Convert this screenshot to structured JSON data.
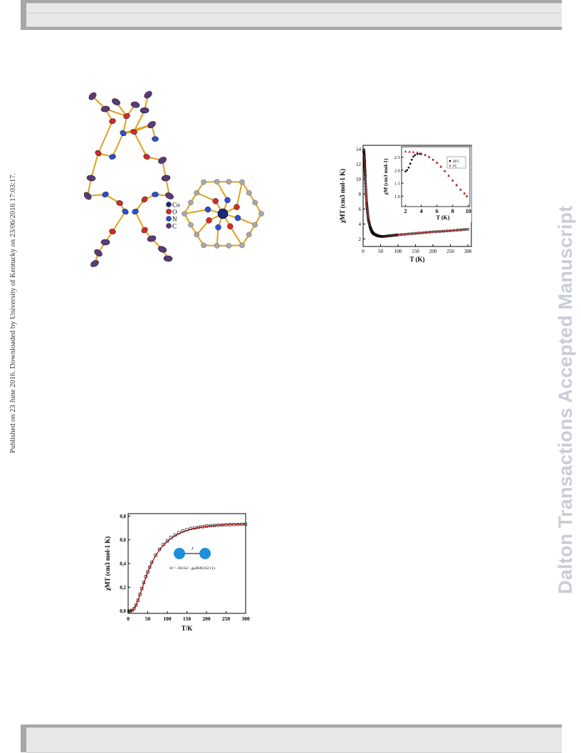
{
  "side_note": "Published on 23 June 2016. Downloaded by University of Kentucky on 23/06/2016 17:03:17.",
  "watermark": "Dalton Transactions Accepted Manuscript",
  "structure_figure": {
    "legend": [
      {
        "symbol": "Co",
        "color": "#1a2a7a"
      },
      {
        "symbol": "O",
        "color": "#d42a2a"
      },
      {
        "symbol": "N",
        "color": "#2a50d8"
      },
      {
        "symbol": "C",
        "color": "#5a3a78"
      }
    ]
  },
  "chart_data": [
    {
      "type": "scatter",
      "xlabel": "T (K)",
      "ylabel": "χMT (cm3 mol-1 K)",
      "xlim": [
        0,
        310
      ],
      "ylim": [
        1,
        14.5
      ],
      "xticks": [
        "0",
        "50",
        "100",
        "150",
        "200",
        "250",
        "300"
      ],
      "yticks": [
        "2",
        "4",
        "6",
        "8",
        "10",
        "12",
        "14"
      ],
      "series": [
        {
          "marker": "open-square",
          "color": "#000000",
          "x": [
            2,
            3,
            4,
            5,
            6,
            8,
            10,
            12,
            15,
            20,
            25,
            30,
            40,
            50,
            60,
            80,
            100,
            150,
            200,
            250,
            300
          ],
          "y": [
            13.8,
            13.2,
            12.4,
            11.4,
            10.3,
            8.4,
            6.9,
            5.8,
            4.6,
            3.6,
            3.0,
            2.7,
            2.45,
            2.35,
            2.35,
            2.45,
            2.55,
            2.75,
            2.95,
            3.1,
            3.3
          ]
        }
      ],
      "inset": {
        "xlabel": "T (K)",
        "ylabel": "χM (cm3 mol-1)",
        "xlim": [
          1.5,
          10.2
        ],
        "ylim": [
          0.6,
          2.9
        ],
        "xticks": [
          "2",
          "4",
          "6",
          "8",
          "10"
        ],
        "yticks": [
          "1.0",
          "1.5",
          "2.0",
          "2.5"
        ],
        "series": [
          {
            "name": "ZFC",
            "marker": "filled-square",
            "color": "#000000",
            "x": [
              2.0,
              2.2,
              2.4,
              2.6,
              2.8,
              3.0,
              3.2,
              3.5,
              3.8,
              4.0,
              4.5,
              5.0,
              5.5,
              6.0,
              6.5,
              7.0,
              7.5,
              8.0,
              8.5,
              9.0,
              9.5,
              9.8
            ],
            "y": [
              1.95,
              2.0,
              2.1,
              2.25,
              2.4,
              2.52,
              2.58,
              2.62,
              2.63,
              2.62,
              2.58,
              2.5,
              2.4,
              2.28,
              2.13,
              1.96,
              1.78,
              1.6,
              1.42,
              1.25,
              1.1,
              1.0
            ]
          },
          {
            "name": "FC",
            "marker": "triangle",
            "color": "#d42a2a",
            "x": [
              2.0,
              2.5,
              3.0,
              3.5,
              4.0,
              4.5,
              5.0,
              5.5,
              6.0,
              6.5,
              7.0,
              7.5,
              8.0,
              8.5,
              9.0,
              9.5,
              9.8
            ],
            "y": [
              2.72,
              2.71,
              2.7,
              2.68,
              2.65,
              2.59,
              2.51,
              2.41,
              2.29,
              2.14,
              1.97,
              1.79,
              1.61,
              1.43,
              1.26,
              1.11,
              1.0
            ]
          }
        ]
      }
    },
    {
      "type": "scatter",
      "xlabel": "T/K",
      "ylabel": "χMT (cm3 mol-1 K)",
      "xlim": [
        0,
        300
      ],
      "ylim": [
        -0.02,
        0.82
      ],
      "xticks": [
        "0",
        "50",
        "100",
        "150",
        "200",
        "250",
        "300"
      ],
      "yticks": [
        "0,0",
        "0,2",
        "0,4",
        "0,6",
        "0,8"
      ],
      "annotation": "H = -JS1S2 - gμBHS1S2 (1)",
      "coupling_label": "J",
      "series": [
        {
          "marker": "open-square",
          "color": "#000000",
          "x": [
            2,
            5,
            10,
            15,
            20,
            25,
            30,
            35,
            40,
            45,
            50,
            55,
            60,
            70,
            80,
            90,
            100,
            110,
            120,
            130,
            140,
            150,
            160,
            170,
            180,
            190,
            200,
            210,
            220,
            230,
            240,
            250,
            260,
            270,
            280,
            290,
            300
          ],
          "y": [
            0.0,
            0.0,
            0.005,
            0.02,
            0.05,
            0.09,
            0.14,
            0.19,
            0.24,
            0.29,
            0.33,
            0.37,
            0.41,
            0.47,
            0.52,
            0.56,
            0.59,
            0.62,
            0.64,
            0.66,
            0.675,
            0.685,
            0.695,
            0.7,
            0.705,
            0.71,
            0.715,
            0.718,
            0.72,
            0.722,
            0.724,
            0.726,
            0.727,
            0.728,
            0.729,
            0.73,
            0.731
          ]
        },
        {
          "marker": "line",
          "color": "#d42a2a",
          "x": [
            2,
            5,
            10,
            15,
            20,
            25,
            30,
            35,
            40,
            45,
            50,
            55,
            60,
            70,
            80,
            90,
            100,
            110,
            120,
            130,
            140,
            150,
            160,
            170,
            180,
            190,
            200,
            210,
            220,
            230,
            240,
            250,
            260,
            270,
            280,
            290,
            300
          ],
          "y": [
            0.0,
            0.0,
            0.004,
            0.018,
            0.048,
            0.088,
            0.135,
            0.185,
            0.235,
            0.283,
            0.327,
            0.367,
            0.404,
            0.466,
            0.515,
            0.555,
            0.587,
            0.613,
            0.634,
            0.652,
            0.666,
            0.678,
            0.688,
            0.696,
            0.703,
            0.708,
            0.713,
            0.717,
            0.72,
            0.723,
            0.725,
            0.727,
            0.729,
            0.73,
            0.731,
            0.732,
            0.733
          ]
        }
      ]
    }
  ]
}
